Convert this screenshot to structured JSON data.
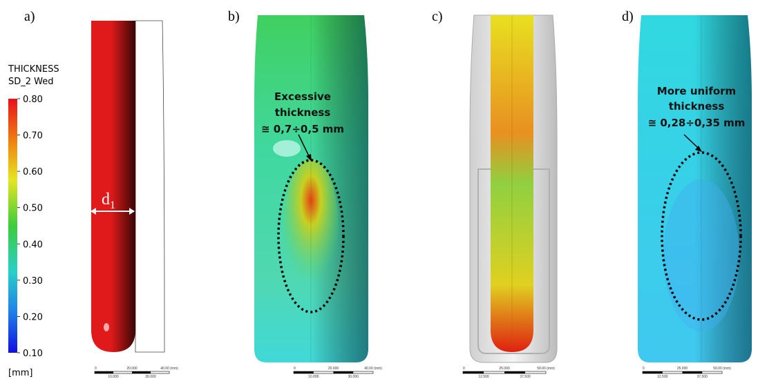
{
  "panels": [
    {
      "label": "a)"
    },
    {
      "label": "b)"
    },
    {
      "label": "c)"
    },
    {
      "label": "d)"
    }
  ],
  "legend": {
    "title": "THICKNESS",
    "subtitle": "SD_2 Wed",
    "ticks": [
      {
        "value": 0.8,
        "label": "0.80"
      },
      {
        "value": 0.7,
        "label": "0.70"
      },
      {
        "value": 0.6,
        "label": "0.60"
      },
      {
        "value": 0.5,
        "label": "0.50"
      },
      {
        "value": 0.4,
        "label": "0.40"
      },
      {
        "value": 0.3,
        "label": "0.30"
      },
      {
        "value": 0.2,
        "label": "0.20"
      },
      {
        "value": 0.1,
        "label": "0.10"
      }
    ],
    "unit": "[mm]"
  },
  "dimension": {
    "symbol": "d",
    "subscript": "1"
  },
  "annotations": [
    {
      "lines": [
        "Excessive",
        "thickness",
        "≅ 0,7÷0,5 mm"
      ]
    },
    {
      "lines": [
        "More uniform",
        "thickness",
        "≅ 0,28÷0,35 mm"
      ]
    }
  ],
  "scale_bars": [
    {
      "top": [
        "0",
        "20.000",
        "40.00 (mm)"
      ],
      "bottom": [
        "10.000",
        "30.000"
      ]
    },
    {
      "top": [
        "0",
        "20.000",
        "40.00 (mm)"
      ],
      "bottom": [
        "10.000",
        "30.000"
      ]
    },
    {
      "top": [
        "0",
        "25.000",
        "50.00 (mm)"
      ],
      "bottom": [
        "12.500",
        "37.500"
      ]
    },
    {
      "top": [
        "0",
        "25.000",
        "50.00 (mm)"
      ],
      "bottom": [
        "12.500",
        "37.500"
      ]
    }
  ]
}
